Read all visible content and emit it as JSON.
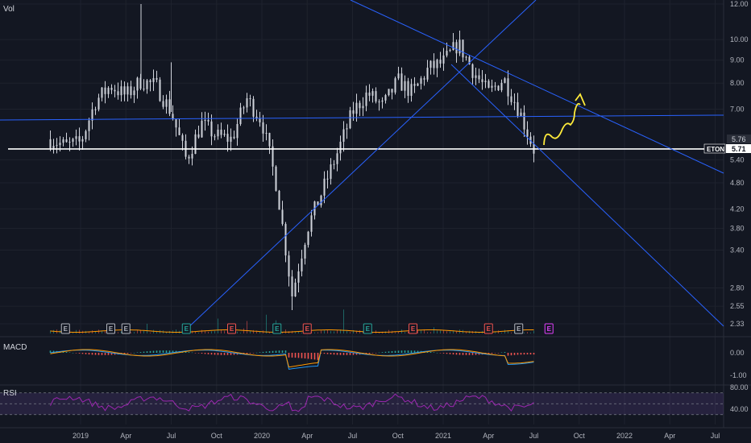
{
  "chart_data": {
    "type": "line",
    "symbol": "ETON",
    "price_scale": "log",
    "main_pane": {
      "label": "Vol",
      "y_ticks": [
        "12.00",
        "10.00",
        "9.00",
        "8.00",
        "7.00",
        "5.40",
        "4.80",
        "4.20",
        "3.80",
        "3.40",
        "2.80",
        "2.55",
        "2.33"
      ],
      "y_tick_values": [
        12.0,
        10.0,
        9.0,
        8.0,
        7.0,
        5.4,
        4.8,
        4.2,
        3.8,
        3.4,
        2.8,
        2.55,
        2.33
      ],
      "ylim": [
        2.2,
        12.6
      ],
      "price_labels": {
        "price_line_value": "5.76",
        "symbol_tag": "ETON",
        "last_value": "5.71",
        "last_price_number": 5.71
      },
      "price_series": [
        {
          "x": "2018-11",
          "y": 6.0
        },
        {
          "x": "2018-12",
          "y": 5.8
        },
        {
          "x": "2019-01",
          "y": 5.9
        },
        {
          "x": "2019-02",
          "y": 7.3
        },
        {
          "x": "2019-03",
          "y": 7.9
        },
        {
          "x": "2019-04",
          "y": 7.5
        },
        {
          "x": "2019-05",
          "y": 8.1
        },
        {
          "x": "2019-06",
          "y": 7.9
        },
        {
          "x": "2019-07",
          "y": 6.9
        },
        {
          "x": "2019-08",
          "y": 5.4
        },
        {
          "x": "2019-09",
          "y": 6.5
        },
        {
          "x": "2019-10",
          "y": 6.1
        },
        {
          "x": "2019-11",
          "y": 6.0
        },
        {
          "x": "2019-12",
          "y": 7.4
        },
        {
          "x": "2020-01",
          "y": 6.6
        },
        {
          "x": "2020-02",
          "y": 4.7
        },
        {
          "x": "2020-03",
          "y": 2.7
        },
        {
          "x": "2020-04",
          "y": 3.8
        },
        {
          "x": "2020-05",
          "y": 4.6
        },
        {
          "x": "2020-06",
          "y": 5.6
        },
        {
          "x": "2020-07",
          "y": 6.9
        },
        {
          "x": "2020-08",
          "y": 7.6
        },
        {
          "x": "2020-09",
          "y": 7.1
        },
        {
          "x": "2020-10",
          "y": 8.1
        },
        {
          "x": "2020-11",
          "y": 7.6
        },
        {
          "x": "2020-12",
          "y": 8.6
        },
        {
          "x": "2021-01",
          "y": 8.9
        },
        {
          "x": "2021-02",
          "y": 9.8
        },
        {
          "x": "2021-03",
          "y": 8.5
        },
        {
          "x": "2021-04",
          "y": 7.6
        },
        {
          "x": "2021-05",
          "y": 8.2
        },
        {
          "x": "2021-06",
          "y": 7.0
        },
        {
          "x": "2021-07",
          "y": 5.7
        }
      ],
      "volume_baseline": "orange",
      "event_markers": [
        {
          "x": "2018-12",
          "letter": "E",
          "color": "#b2b5be"
        },
        {
          "x": "2019-03",
          "letter": "E",
          "color": "#b2b5be"
        },
        {
          "x": "2019-04",
          "letter": "E",
          "color": "#b2b5be"
        },
        {
          "x": "2019-08",
          "letter": "E",
          "color": "#26a69a"
        },
        {
          "x": "2019-11",
          "letter": "E",
          "color": "#ef5350"
        },
        {
          "x": "2020-02",
          "letter": "E",
          "color": "#26a69a"
        },
        {
          "x": "2020-04",
          "letter": "E",
          "color": "#ef5350"
        },
        {
          "x": "2020-08",
          "letter": "E",
          "color": "#26a69a"
        },
        {
          "x": "2020-11",
          "letter": "E",
          "color": "#ef5350"
        },
        {
          "x": "2021-04",
          "letter": "E",
          "color": "#ef5350"
        },
        {
          "x": "2021-06",
          "letter": "E",
          "color": "#b2b5be"
        },
        {
          "x": "2021-08",
          "letter": "E",
          "color": "#e040fb"
        }
      ],
      "drawings": {
        "support_line_color": "#ffffff",
        "trendline_color": "#2962ff",
        "projection_color": "#ffeb3b"
      }
    },
    "macd_pane": {
      "label": "MACD",
      "y_ticks": [
        "0.00",
        "-1.00"
      ],
      "y_tick_values": [
        0.0,
        -1.0
      ],
      "line_color": "#2196f3",
      "signal_color": "#ff9800",
      "hist_up_color": "#26a69a",
      "hist_down_color": "#ef5350"
    },
    "rsi_pane": {
      "label": "RSI",
      "y_ticks": [
        "80.00",
        "40.00"
      ],
      "y_tick_values": [
        80.0,
        40.0
      ],
      "band": [
        30,
        70
      ],
      "line_color": "#9c27b0",
      "band_color": "#7e57c2"
    },
    "x_ticks": [
      "2019",
      "Apr",
      "Jul",
      "Oct",
      "2020",
      "Apr",
      "Jul",
      "Oct",
      "2021",
      "Apr",
      "Jul",
      "Oct",
      "2022",
      "Apr",
      "Jul"
    ],
    "x_tick_dates": [
      "2019-01",
      "2019-04",
      "2019-07",
      "2019-10",
      "2020-01",
      "2020-04",
      "2020-07",
      "2020-10",
      "2021-01",
      "2021-04",
      "2021-07",
      "2021-10",
      "2022-01",
      "2022-04",
      "2022-07"
    ],
    "grid": true,
    "colors": {
      "background": "#131722",
      "grid": "#1e222d",
      "candles": "#d1d4dc",
      "text": "#b2b5be"
    }
  }
}
